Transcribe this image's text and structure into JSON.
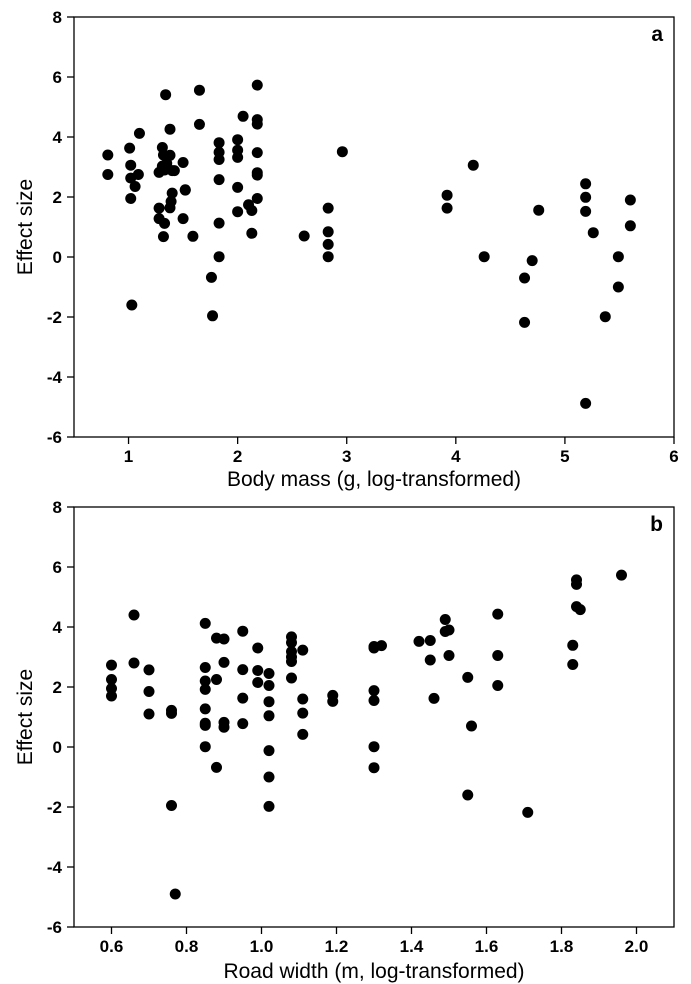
{
  "chart_data": [
    {
      "type": "scatter",
      "panel_label": "a",
      "xlabel": "Body mass (g, log-transformed)",
      "ylabel": "Effect size",
      "xlim": [
        0.5,
        6
      ],
      "ylim": [
        -6,
        8
      ],
      "xticks": [
        1,
        2,
        3,
        4,
        5,
        6
      ],
      "xtick_labels": [
        "1",
        "2",
        "3",
        "4",
        "5",
        "6"
      ],
      "yticks": [
        -6,
        -4,
        -2,
        0,
        2,
        4,
        6,
        8
      ],
      "ytick_labels": [
        "-6",
        "-4",
        "-2",
        "0",
        "2",
        "4",
        "6",
        "8"
      ],
      "grid": false,
      "points": [
        [
          0.81,
          3.4
        ],
        [
          0.81,
          2.75
        ],
        [
          1.01,
          3.63
        ],
        [
          1.02,
          3.06
        ],
        [
          1.02,
          2.63
        ],
        [
          1.02,
          1.95
        ],
        [
          1.03,
          -1.6
        ],
        [
          1.06,
          2.35
        ],
        [
          1.09,
          2.75
        ],
        [
          1.1,
          4.12
        ],
        [
          1.28,
          1.63
        ],
        [
          1.28,
          2.82
        ],
        [
          1.28,
          1.28
        ],
        [
          1.31,
          3.03
        ],
        [
          1.31,
          3.65
        ],
        [
          1.32,
          3.4
        ],
        [
          1.32,
          0.68
        ],
        [
          1.33,
          2.9
        ],
        [
          1.33,
          1.12
        ],
        [
          1.34,
          5.41
        ],
        [
          1.35,
          3.12
        ],
        [
          1.38,
          4.26
        ],
        [
          1.38,
          3.39
        ],
        [
          1.38,
          1.64
        ],
        [
          1.39,
          1.85
        ],
        [
          1.4,
          2.13
        ],
        [
          1.4,
          2.88
        ],
        [
          1.42,
          2.88
        ],
        [
          1.5,
          3.15
        ],
        [
          1.5,
          1.28
        ],
        [
          1.52,
          2.23
        ],
        [
          1.52,
          2.24
        ],
        [
          1.59,
          0.69
        ],
        [
          1.65,
          4.42
        ],
        [
          1.65,
          5.56
        ],
        [
          1.76,
          -0.68
        ],
        [
          1.77,
          -1.96
        ],
        [
          1.83,
          3.81
        ],
        [
          1.83,
          3.25
        ],
        [
          1.83,
          3.49
        ],
        [
          1.83,
          2.58
        ],
        [
          1.83,
          1.13
        ],
        [
          1.83,
          0.01
        ],
        [
          2.0,
          1.51
        ],
        [
          2.0,
          2.32
        ],
        [
          2.0,
          3.56
        ],
        [
          2.0,
          3.91
        ],
        [
          2.0,
          3.32
        ],
        [
          2.05,
          4.69
        ],
        [
          2.1,
          1.74
        ],
        [
          2.13,
          0.79
        ],
        [
          2.13,
          1.55
        ],
        [
          2.18,
          5.73
        ],
        [
          2.18,
          4.58
        ],
        [
          2.18,
          4.43
        ],
        [
          2.18,
          3.48
        ],
        [
          2.18,
          2.73
        ],
        [
          2.18,
          2.81
        ],
        [
          2.18,
          1.95
        ],
        [
          2.61,
          0.7
        ],
        [
          2.83,
          1.63
        ],
        [
          2.83,
          0.84
        ],
        [
          2.83,
          0.42
        ],
        [
          2.83,
          0.01
        ],
        [
          2.96,
          3.51
        ],
        [
          3.92,
          2.06
        ],
        [
          3.92,
          1.63
        ],
        [
          4.16,
          3.06
        ],
        [
          4.26,
          0.01
        ],
        [
          4.63,
          -0.7
        ],
        [
          4.63,
          -2.18
        ],
        [
          4.7,
          -0.12
        ],
        [
          4.76,
          1.56
        ],
        [
          5.19,
          2.44
        ],
        [
          5.19,
          1.99
        ],
        [
          5.19,
          1.52
        ],
        [
          5.19,
          -4.88
        ],
        [
          5.26,
          0.81
        ],
        [
          5.37,
          -1.99
        ],
        [
          5.49,
          0.01
        ],
        [
          5.49,
          -1.0
        ],
        [
          5.6,
          1.9
        ],
        [
          5.6,
          1.04
        ]
      ]
    },
    {
      "type": "scatter",
      "panel_label": "b",
      "xlabel": "Road width (m, log-transformed)",
      "ylabel": "Effect size",
      "xlim": [
        0.5,
        2.1
      ],
      "ylim": [
        -6,
        8
      ],
      "xticks": [
        0.6,
        0.8,
        1.0,
        1.2,
        1.4,
        1.6,
        1.8,
        2.0
      ],
      "xtick_labels": [
        "0.6",
        "0.8",
        "1.0",
        "1.2",
        "1.4",
        "1.6",
        "1.8",
        "2.0"
      ],
      "yticks": [
        -6,
        -4,
        -2,
        0,
        2,
        4,
        6,
        8
      ],
      "ytick_labels": [
        "-6",
        "-4",
        "-2",
        "0",
        "2",
        "4",
        "6",
        "8"
      ],
      "grid": false,
      "points": [
        [
          0.6,
          2.73
        ],
        [
          0.6,
          2.25
        ],
        [
          0.6,
          1.95
        ],
        [
          0.6,
          1.7
        ],
        [
          0.66,
          4.4
        ],
        [
          0.66,
          2.8
        ],
        [
          0.7,
          2.57
        ],
        [
          0.7,
          1.85
        ],
        [
          0.7,
          1.1
        ],
        [
          0.76,
          1.22
        ],
        [
          0.76,
          1.12
        ],
        [
          0.76,
          -1.95
        ],
        [
          0.77,
          -4.9
        ],
        [
          0.85,
          4.12
        ],
        [
          0.85,
          2.65
        ],
        [
          0.85,
          2.2
        ],
        [
          0.85,
          1.92
        ],
        [
          0.85,
          1.27
        ],
        [
          0.85,
          0.79
        ],
        [
          0.85,
          0.72
        ],
        [
          0.85,
          0.01
        ],
        [
          0.88,
          3.63
        ],
        [
          0.88,
          2.25
        ],
        [
          0.88,
          -0.68
        ],
        [
          0.9,
          3.6
        ],
        [
          0.9,
          2.82
        ],
        [
          0.9,
          0.82
        ],
        [
          0.9,
          0.66
        ],
        [
          0.95,
          3.86
        ],
        [
          0.95,
          2.58
        ],
        [
          0.95,
          1.63
        ],
        [
          0.95,
          0.78
        ],
        [
          0.99,
          3.3
        ],
        [
          0.99,
          2.55
        ],
        [
          0.99,
          2.15
        ],
        [
          1.02,
          2.45
        ],
        [
          1.02,
          2.05
        ],
        [
          1.02,
          1.51
        ],
        [
          1.02,
          1.04
        ],
        [
          1.02,
          -0.12
        ],
        [
          1.02,
          -1.0
        ],
        [
          1.02,
          -1.98
        ],
        [
          1.08,
          3.67
        ],
        [
          1.08,
          3.48
        ],
        [
          1.08,
          3.18
        ],
        [
          1.08,
          3.0
        ],
        [
          1.08,
          2.85
        ],
        [
          1.08,
          2.3
        ],
        [
          1.11,
          3.23
        ],
        [
          1.11,
          1.6
        ],
        [
          1.11,
          1.13
        ],
        [
          1.11,
          0.42
        ],
        [
          1.19,
          1.72
        ],
        [
          1.19,
          1.52
        ],
        [
          1.3,
          3.35
        ],
        [
          1.3,
          3.3
        ],
        [
          1.3,
          1.88
        ],
        [
          1.3,
          1.55
        ],
        [
          1.3,
          0.01
        ],
        [
          1.3,
          -0.69
        ],
        [
          1.32,
          3.38
        ],
        [
          1.42,
          3.52
        ],
        [
          1.45,
          3.55
        ],
        [
          1.45,
          2.9
        ],
        [
          1.46,
          1.62
        ],
        [
          1.49,
          4.25
        ],
        [
          1.49,
          3.85
        ],
        [
          1.5,
          3.9
        ],
        [
          1.5,
          3.05
        ],
        [
          1.55,
          2.32
        ],
        [
          1.55,
          -1.6
        ],
        [
          1.56,
          0.7
        ],
        [
          1.63,
          4.43
        ],
        [
          1.63,
          3.05
        ],
        [
          1.63,
          2.05
        ],
        [
          1.71,
          -2.18
        ],
        [
          1.83,
          3.39
        ],
        [
          1.83,
          2.75
        ],
        [
          1.84,
          5.57
        ],
        [
          1.84,
          5.42
        ],
        [
          1.84,
          4.68
        ],
        [
          1.85,
          4.58
        ],
        [
          1.96,
          5.73
        ]
      ]
    }
  ]
}
